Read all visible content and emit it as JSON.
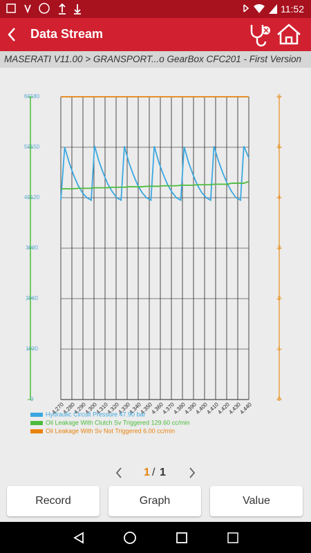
{
  "status": {
    "time": "11:52"
  },
  "header": {
    "title": "Data Stream"
  },
  "breadcrumb": "MASERATI V11.00 > GRANSPORT...o GearBox CFC201 - First Version",
  "chart_data": {
    "type": "line",
    "x": [
      4.27,
      4.2735,
      4.2775,
      4.2815,
      4.2855,
      4.2895,
      4.2935,
      4.2975,
      4.3005,
      4.3045,
      4.3085,
      4.3125,
      4.3165,
      4.3205,
      4.3245,
      4.3275,
      4.3315,
      4.3355,
      4.3395,
      4.3435,
      4.3475,
      4.3515,
      4.3545,
      4.3585,
      4.3625,
      4.3665,
      4.3705,
      4.3745,
      4.3785,
      4.3815,
      4.3855,
      4.3895,
      4.3935,
      4.3975,
      4.4015,
      4.4055,
      4.4085,
      4.4125,
      4.4165,
      4.4205,
      4.4245,
      4.4285,
      4.4325,
      4.4355,
      4.44
    ],
    "series": [
      {
        "name": "Hydraulic Circuit Pressure 47.90 bar",
        "color": "#3aa7e0",
        "axis": "y",
        "values": [
          39.5,
          50.0,
          47.0,
          44.5,
          42.5,
          41.0,
          40.0,
          39.5,
          50.3,
          47.2,
          44.8,
          42.7,
          41.2,
          40.0,
          39.5,
          50.2,
          47.0,
          44.6,
          42.5,
          41.0,
          40.0,
          39.5,
          50.2,
          47.1,
          44.7,
          42.6,
          41.1,
          40.0,
          39.5,
          50.1,
          47.0,
          44.6,
          42.5,
          41.0,
          40.0,
          39.5,
          50.2,
          47.3,
          44.9,
          42.8,
          41.2,
          40.0,
          39.5,
          50.2,
          47.9
        ]
      },
      {
        "name": "Oil Leakage With Clutch Sv Triggered 129.60 cc/min",
        "color": "#4cbb3c",
        "axis": "y3",
        "values": [
          125.3,
          125.3,
          125.3,
          125.3,
          125.6,
          125.6,
          125.6,
          125.6,
          125.9,
          125.9,
          125.9,
          125.9,
          126.2,
          126.2,
          126.2,
          126.2,
          126.5,
          126.5,
          126.5,
          126.5,
          126.8,
          126.8,
          126.8,
          126.8,
          127.1,
          127.1,
          127.1,
          127.1,
          127.4,
          127.4,
          127.4,
          127.4,
          127.7,
          127.7,
          127.7,
          127.7,
          128.0,
          128.0,
          128.0,
          128.0,
          128.6,
          128.6,
          128.6,
          128.6,
          129.6
        ]
      },
      {
        "name": "Oil Leakage With Sv Not Triggered 6.00 cc/min",
        "color": "#e8820c",
        "axis": "y2",
        "values": [
          6,
          6,
          6,
          6,
          6,
          6,
          6,
          6,
          6,
          6,
          6,
          6,
          6,
          6,
          6,
          6,
          6,
          6,
          6,
          6,
          6,
          6,
          6,
          6,
          6,
          6,
          6,
          6,
          6,
          6,
          6,
          6,
          6,
          6,
          6,
          6,
          6,
          6,
          6,
          6,
          6,
          6,
          6,
          6,
          6
        ]
      }
    ],
    "xlim": [
      4.27,
      4.44
    ],
    "xticks": [
      {
        "value": 4.27,
        "label": "4.270"
      },
      {
        "value": 4.28,
        "label": "4.280"
      },
      {
        "value": 4.29,
        "label": "4.290"
      },
      {
        "value": 4.3,
        "label": "4.300"
      },
      {
        "value": 4.31,
        "label": "4.310"
      },
      {
        "value": 4.32,
        "label": "4.320"
      },
      {
        "value": 4.33,
        "label": "4.330"
      },
      {
        "value": 4.34,
        "label": "4.340"
      },
      {
        "value": 4.35,
        "label": "4.350"
      },
      {
        "value": 4.36,
        "label": "4.360"
      },
      {
        "value": 4.37,
        "label": "4.370"
      },
      {
        "value": 4.38,
        "label": "4.380"
      },
      {
        "value": 4.39,
        "label": "4.390"
      },
      {
        "value": 4.4,
        "label": "4.400"
      },
      {
        "value": 4.41,
        "label": "4.410"
      },
      {
        "value": 4.42,
        "label": "4.420"
      },
      {
        "value": 4.43,
        "label": "4.430"
      },
      {
        "value": 4.44,
        "label": "4.440"
      }
    ],
    "ylim": [
      0,
      60
    ],
    "yticks": [
      0,
      {
        "value": 10,
        "label": "1030"
      },
      {
        "value": 20,
        "label": "2060"
      },
      {
        "value": 30,
        "label": "3090"
      },
      {
        "value": 40,
        "label": "40120"
      },
      {
        "value": 50,
        "label": "50150"
      },
      {
        "value": 60,
        "label": "60180"
      }
    ],
    "y3lim": [
      0,
      180
    ],
    "y2lim": [
      0,
      6
    ],
    "y2ticks": [
      0,
      1,
      2,
      3,
      4,
      5,
      6
    ],
    "grid": true
  },
  "pagination": {
    "current": "1",
    "separator": "/",
    "total": "1"
  },
  "buttons": [
    "Record",
    "Graph",
    "Value"
  ]
}
